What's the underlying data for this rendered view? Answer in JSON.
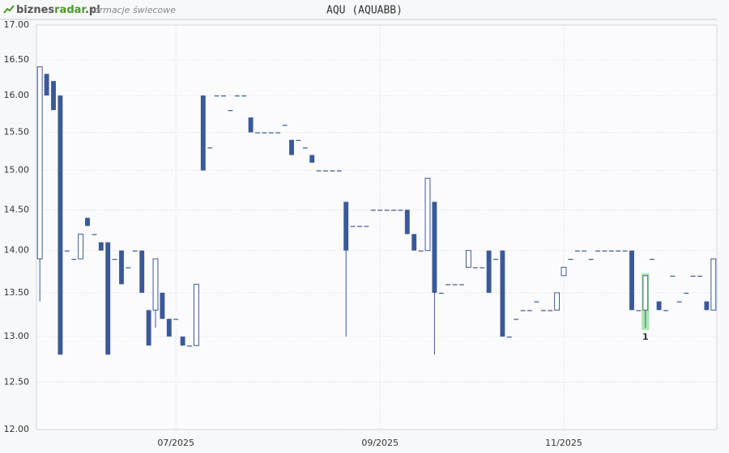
{
  "header": {
    "logo_part1": "biznes",
    "logo_part2": "radar",
    "logo_part3": ".pl",
    "subtitle": "formacje świecowe"
  },
  "chart_data": {
    "type": "candlestick",
    "title": "AQU (AQUABB)",
    "log_scale": true,
    "grid": true,
    "ylim": [
      12,
      17
    ],
    "yticks": [
      {
        "value": 12,
        "label": "12.00"
      },
      {
        "value": 12.5,
        "label": "12.50"
      },
      {
        "value": 13,
        "label": "13.00"
      },
      {
        "value": 13.5,
        "label": "13.50"
      },
      {
        "value": 14,
        "label": "14.00"
      },
      {
        "value": 14.5,
        "label": "14.50"
      },
      {
        "value": 15,
        "label": "15.00"
      },
      {
        "value": 15.5,
        "label": "15.50"
      },
      {
        "value": 16,
        "label": "16.00"
      },
      {
        "value": 16.5,
        "label": "16.50"
      },
      {
        "value": 17,
        "label": "17.00"
      }
    ],
    "categories": [
      null,
      null,
      null,
      null,
      null,
      null,
      null,
      null,
      null,
      null,
      null,
      null,
      null,
      null,
      null,
      null,
      null,
      null,
      null,
      null,
      "07/2025",
      null,
      null,
      null,
      null,
      null,
      null,
      null,
      null,
      null,
      null,
      null,
      null,
      null,
      null,
      null,
      null,
      null,
      null,
      null,
      null,
      null,
      null,
      null,
      null,
      null,
      null,
      null,
      null,
      null,
      "09/2025",
      null,
      null,
      null,
      null,
      null,
      null,
      null,
      null,
      null,
      null,
      null,
      null,
      null,
      null,
      null,
      null,
      null,
      null,
      null,
      null,
      null,
      null,
      null,
      null,
      null,
      null,
      "11/2025",
      null,
      null,
      null,
      null,
      null,
      null,
      null,
      null,
      null,
      null,
      null,
      null,
      null,
      null,
      null,
      null,
      null,
      null,
      null,
      null,
      null,
      null
    ],
    "down_color": "#3b5998",
    "up_color": "#ffffff",
    "series": [
      {
        "name": "AQU",
        "open": [
          13.9,
          16.3,
          16.2,
          16.0,
          14.0,
          13.9,
          13.9,
          14.4,
          14.2,
          14.1,
          14.1,
          13.9,
          14.0,
          13.8,
          14.0,
          14.0,
          13.3,
          13.3,
          13.5,
          13.2,
          13.2,
          13.0,
          12.9,
          12.9,
          16.0,
          15.3,
          16.0,
          16.0,
          15.8,
          16.0,
          16.0,
          15.7,
          15.5,
          15.5,
          15.5,
          15.5,
          15.6,
          15.4,
          15.4,
          15.3,
          15.2,
          15.0,
          15.0,
          15.0,
          15.0,
          14.6,
          14.3,
          14.3,
          14.3,
          14.5,
          14.5,
          14.5,
          14.5,
          14.5,
          14.5,
          14.2,
          14.0,
          14.0,
          14.6,
          13.5,
          13.6,
          13.6,
          13.6,
          13.8,
          13.8,
          13.8,
          14.0,
          13.9,
          14.0,
          13.0,
          13.2,
          13.3,
          13.3,
          13.4,
          13.3,
          13.3,
          13.3,
          13.7,
          13.9,
          14.0,
          14.0,
          13.9,
          14.0,
          14.0,
          14.0,
          14.0,
          14.0,
          14.0,
          13.3,
          13.3,
          13.9,
          13.4,
          13.3,
          13.7,
          13.4,
          13.5,
          13.7,
          13.7,
          13.4,
          13.3
        ],
        "high": [
          16.4,
          16.3,
          16.2,
          16.0,
          14.0,
          13.9,
          14.2,
          14.4,
          14.2,
          14.1,
          14.1,
          13.9,
          14.0,
          13.8,
          14.0,
          14.0,
          13.3,
          13.9,
          13.5,
          13.2,
          13.2,
          13.0,
          12.9,
          13.6,
          16.0,
          15.3,
          16.0,
          16.0,
          15.8,
          16.0,
          16.0,
          15.7,
          15.5,
          15.5,
          15.5,
          15.5,
          15.6,
          15.4,
          15.4,
          15.3,
          15.2,
          15.0,
          15.0,
          15.0,
          15.0,
          14.6,
          14.3,
          14.3,
          14.3,
          14.5,
          14.5,
          14.5,
          14.5,
          14.5,
          14.5,
          14.2,
          14.0,
          14.9,
          14.6,
          13.5,
          13.6,
          13.6,
          13.6,
          14.0,
          13.8,
          13.8,
          14.0,
          13.9,
          14.0,
          13.0,
          13.2,
          13.3,
          13.3,
          13.4,
          13.3,
          13.3,
          13.5,
          13.8,
          13.9,
          14.0,
          14.0,
          13.9,
          14.0,
          14.0,
          14.0,
          14.0,
          14.0,
          14.0,
          13.3,
          13.7,
          13.9,
          13.4,
          13.3,
          13.7,
          13.4,
          13.5,
          13.7,
          13.7,
          13.4,
          13.9
        ],
        "low": [
          13.4,
          16.0,
          15.8,
          12.8,
          14.0,
          13.9,
          13.9,
          14.3,
          14.2,
          14.0,
          12.8,
          13.9,
          13.6,
          13.8,
          14.0,
          13.5,
          12.9,
          13.1,
          13.2,
          13.0,
          13.2,
          12.9,
          12.9,
          12.9,
          15.0,
          15.3,
          16.0,
          16.0,
          15.8,
          16.0,
          16.0,
          15.5,
          15.5,
          15.5,
          15.5,
          15.5,
          15.6,
          15.2,
          15.4,
          15.3,
          15.1,
          15.0,
          15.0,
          15.0,
          15.0,
          13.0,
          14.3,
          14.3,
          14.3,
          14.5,
          14.5,
          14.5,
          14.5,
          14.5,
          14.2,
          14.0,
          14.0,
          14.0,
          12.8,
          13.5,
          13.6,
          13.6,
          13.6,
          13.8,
          13.8,
          13.8,
          13.5,
          13.9,
          13.0,
          13.0,
          13.2,
          13.3,
          13.3,
          13.4,
          13.3,
          13.3,
          13.3,
          13.7,
          13.9,
          14.0,
          14.0,
          13.9,
          14.0,
          14.0,
          14.0,
          14.0,
          14.0,
          13.3,
          13.3,
          13.1,
          13.9,
          13.3,
          13.3,
          13.7,
          13.4,
          13.5,
          13.7,
          13.7,
          13.3,
          13.3
        ],
        "close": [
          16.4,
          16.0,
          15.8,
          12.8,
          14.0,
          13.9,
          14.2,
          14.3,
          14.2,
          14.0,
          12.8,
          13.9,
          13.6,
          13.8,
          14.0,
          13.5,
          12.9,
          13.9,
          13.2,
          13.0,
          13.2,
          12.9,
          12.9,
          13.6,
          15.0,
          15.3,
          16.0,
          16.0,
          15.8,
          16.0,
          16.0,
          15.5,
          15.5,
          15.5,
          15.5,
          15.5,
          15.6,
          15.2,
          15.4,
          15.3,
          15.1,
          15.0,
          15.0,
          15.0,
          15.0,
          14.0,
          14.3,
          14.3,
          14.3,
          14.5,
          14.5,
          14.5,
          14.5,
          14.5,
          14.2,
          14.0,
          14.0,
          14.9,
          13.5,
          13.5,
          13.6,
          13.6,
          13.6,
          14.0,
          13.8,
          13.8,
          13.5,
          13.9,
          13.0,
          13.0,
          13.2,
          13.3,
          13.3,
          13.4,
          13.3,
          13.3,
          13.5,
          13.8,
          13.9,
          14.0,
          14.0,
          13.9,
          14.0,
          14.0,
          14.0,
          14.0,
          14.0,
          13.3,
          13.3,
          13.7,
          13.9,
          13.3,
          13.3,
          13.7,
          13.4,
          13.5,
          13.7,
          13.7,
          13.3,
          13.9
        ]
      }
    ],
    "annotations": [
      {
        "index": 89,
        "label": "1",
        "color": "#a8e8a8"
      }
    ]
  }
}
